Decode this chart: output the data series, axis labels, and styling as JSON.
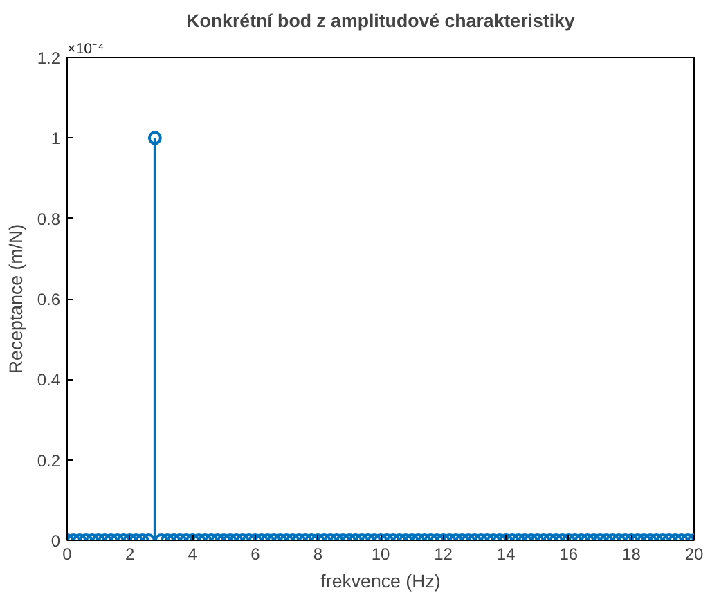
{
  "chart_data": {
    "type": "lollipop",
    "title": "Konkrétní bod z amplitudové charakteristiky",
    "xlabel": "frekvence (Hz)",
    "ylabel": "Receptance (m/N)",
    "annotations": [
      "×10⁻⁴"
    ],
    "x": [
      0,
      0.2,
      0.4,
      0.6,
      0.8,
      1,
      1.2,
      1.4,
      1.6,
      1.8,
      2,
      2.2,
      2.4,
      2.6,
      2.8,
      3,
      3.2,
      3.4,
      3.6,
      3.8,
      4,
      4.2,
      4.4,
      4.6,
      4.8,
      5,
      5.2,
      5.4,
      5.6,
      5.8,
      6,
      6.2,
      6.4,
      6.6,
      6.8,
      7,
      7.2,
      7.4,
      7.6,
      7.8,
      8,
      8.2,
      8.4,
      8.6,
      8.8,
      9,
      9.2,
      9.4,
      9.6,
      9.8,
      10,
      10.2,
      10.4,
      10.6,
      10.8,
      11,
      11.2,
      11.4,
      11.6,
      11.8,
      12,
      12.2,
      12.4,
      12.6,
      12.8,
      13,
      13.2,
      13.4,
      13.6,
      13.8,
      14,
      14.2,
      14.4,
      14.6,
      14.8,
      15,
      15.2,
      15.4,
      15.6,
      15.8,
      16,
      16.2,
      16.4,
      16.6,
      16.8,
      17,
      17.2,
      17.4,
      17.6,
      17.8,
      18,
      18.2,
      18.4,
      18.6,
      18.8,
      19,
      19.2,
      19.4,
      19.6,
      19.8,
      20
    ],
    "values": [
      0,
      0,
      0,
      0,
      0,
      0,
      0,
      0,
      0,
      0,
      0,
      0,
      0,
      0,
      1,
      0,
      0,
      0,
      0,
      0,
      0,
      0,
      0,
      0,
      0,
      0,
      0,
      0,
      0,
      0,
      0,
      0,
      0,
      0,
      0,
      0,
      0,
      0,
      0,
      0,
      0,
      0,
      0,
      0,
      0,
      0,
      0,
      0,
      0,
      0,
      0,
      0,
      0,
      0,
      0,
      0,
      0,
      0,
      0,
      0,
      0,
      0,
      0,
      0,
      0,
      0,
      0,
      0,
      0,
      0,
      0,
      0,
      0,
      0,
      0,
      0,
      0,
      0,
      0,
      0,
      0,
      0,
      0,
      0,
      0,
      0,
      0,
      0,
      0,
      0,
      0,
      0,
      0,
      0,
      0,
      0,
      0,
      0,
      0,
      0,
      0
    ],
    "color": "#0072bd",
    "marker": "circle",
    "grid": false,
    "xlim": [
      0,
      20
    ],
    "xticks": [
      0,
      2,
      4,
      6,
      8,
      10,
      12,
      14,
      16,
      18,
      20
    ],
    "ylim": [
      0,
      1.2
    ],
    "yticks": [
      0,
      0.2,
      0.4,
      0.6,
      0.8,
      1,
      1.2
    ]
  }
}
